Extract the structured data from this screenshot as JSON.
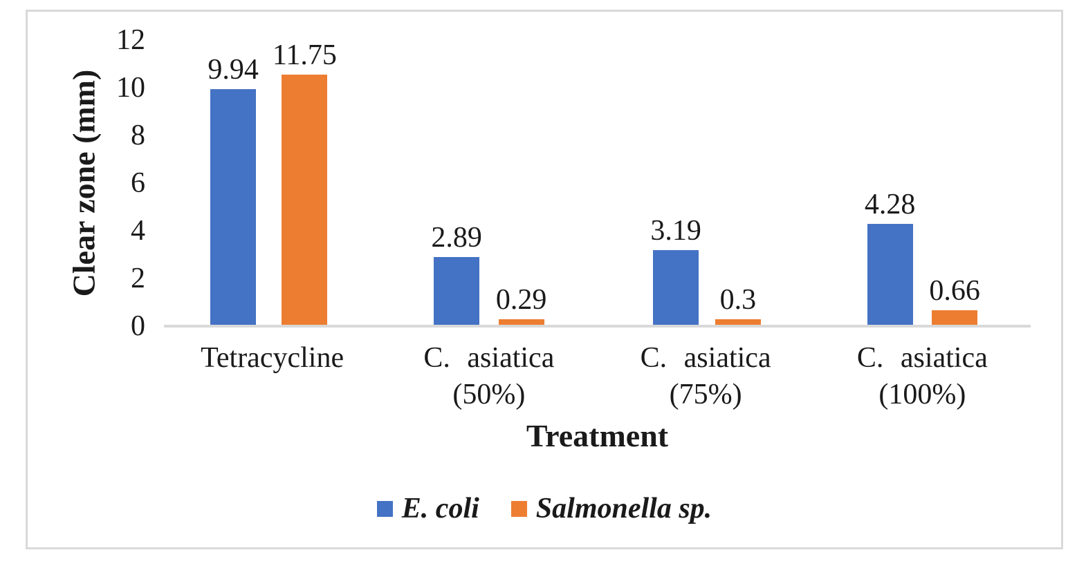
{
  "chart_data": {
    "type": "bar",
    "title": "",
    "xlabel": "Treatment",
    "ylabel": "Clear zone (mm)",
    "categories": [
      "Tetracycline",
      "C. asiatica (50%)",
      "C. asiatica (75%)",
      "C. asiatica (100%)"
    ],
    "series": [
      {
        "name": "E. coli",
        "color": "#4472C4",
        "values": [
          9.94,
          2.89,
          3.19,
          4.28
        ],
        "labels": [
          "9.94",
          "2.89",
          "3.19",
          "4.28"
        ]
      },
      {
        "name": "Salmonella sp.",
        "color": "#ED7D31",
        "values": [
          11.75,
          0.29,
          0.3,
          0.66
        ],
        "labels": [
          "11.75",
          "0.29",
          "0.3",
          "0.66"
        ]
      }
    ],
    "yticks": [
      0,
      2,
      4,
      6,
      8,
      10,
      12
    ],
    "ylim": [
      0,
      12
    ],
    "grid": false,
    "legend_position": "bottom",
    "axis_line_color": "#D9D9D9",
    "frame_color": "#D9D9D9"
  }
}
